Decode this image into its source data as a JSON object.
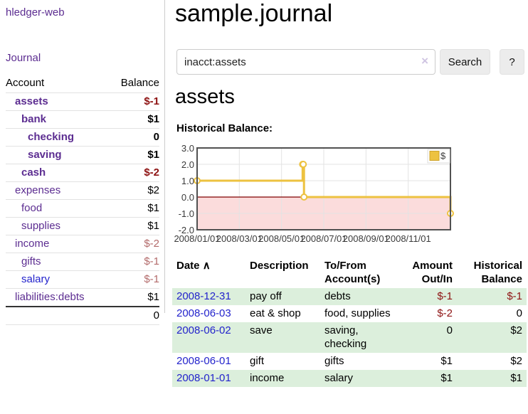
{
  "app": {
    "name": "hledger-web"
  },
  "sidebar": {
    "journal_label": "Journal",
    "accounts_table": {
      "headers": {
        "account": "Account",
        "balance": "Balance"
      },
      "rows": [
        {
          "name": "assets",
          "balance": "$-1"
        },
        {
          "name": "bank",
          "balance": "$1"
        },
        {
          "name": "checking",
          "balance": "0"
        },
        {
          "name": "saving",
          "balance": "$1"
        },
        {
          "name": "cash",
          "balance": "$-2"
        },
        {
          "name": "expenses",
          "balance": "$2"
        },
        {
          "name": "food",
          "balance": "$1"
        },
        {
          "name": "supplies",
          "balance": "$1"
        },
        {
          "name": "income",
          "balance": "$-2"
        },
        {
          "name": "gifts",
          "balance": "$-1"
        },
        {
          "name": "salary",
          "balance": "$-1"
        },
        {
          "name": "liabilities:debts",
          "balance": "$1"
        }
      ],
      "total": "0"
    }
  },
  "header": {
    "title": "sample.journal"
  },
  "search": {
    "query": "inacct:assets",
    "clear_icon": "×",
    "button_label": "Search",
    "help_label": "?"
  },
  "account_page": {
    "heading": "assets",
    "chart_title": "Historical Balance:"
  },
  "chart_data": {
    "type": "line",
    "step": true,
    "title": "Historical Balance:",
    "series": [
      {
        "name": "$",
        "color": "#edc240",
        "points": [
          [
            "2008-01-01",
            1
          ],
          [
            "2008-06-01",
            2
          ],
          [
            "2008-06-02",
            2
          ],
          [
            "2008-06-03",
            0
          ],
          [
            "2008-12-31",
            -1
          ]
        ]
      }
    ],
    "ylim": [
      -2,
      3
    ],
    "xrange": [
      "2008-01-01",
      "2008-12-31"
    ],
    "yticks": [
      "3.0",
      "2.0",
      "1.0",
      "0.0",
      "-1.0",
      "-2.0"
    ],
    "xticks": [
      "2008/01/01",
      "2008/03/01",
      "2008/05/01",
      "2008/07/01",
      "2008/09/01",
      "2008/11/01"
    ],
    "zero_line_color": "#800000",
    "negative_region_fill": "#fbdcdc",
    "legend_position": "top-right",
    "grid": true
  },
  "transactions": {
    "headers": {
      "date": "Date",
      "sort_icon": "∧",
      "description": "Description",
      "accounts": "To/From Account(s)",
      "amount": "Amount Out/In",
      "balance": "Historical Balance"
    },
    "rows": [
      {
        "date": "2008-12-31",
        "description": "pay off",
        "accounts": "debts",
        "amount": "$-1",
        "balance": "$-1"
      },
      {
        "date": "2008-06-03",
        "description": "eat & shop",
        "accounts": "food, supplies",
        "amount": "$-2",
        "balance": "0"
      },
      {
        "date": "2008-06-02",
        "description": "save",
        "accounts": "saving, checking",
        "amount": "0",
        "balance": "$2"
      },
      {
        "date": "2008-06-01",
        "description": "gift",
        "accounts": "gifts",
        "amount": "$1",
        "balance": "$2"
      },
      {
        "date": "2008-01-01",
        "description": "income",
        "accounts": "salary",
        "amount": "$1",
        "balance": "$1"
      }
    ]
  }
}
